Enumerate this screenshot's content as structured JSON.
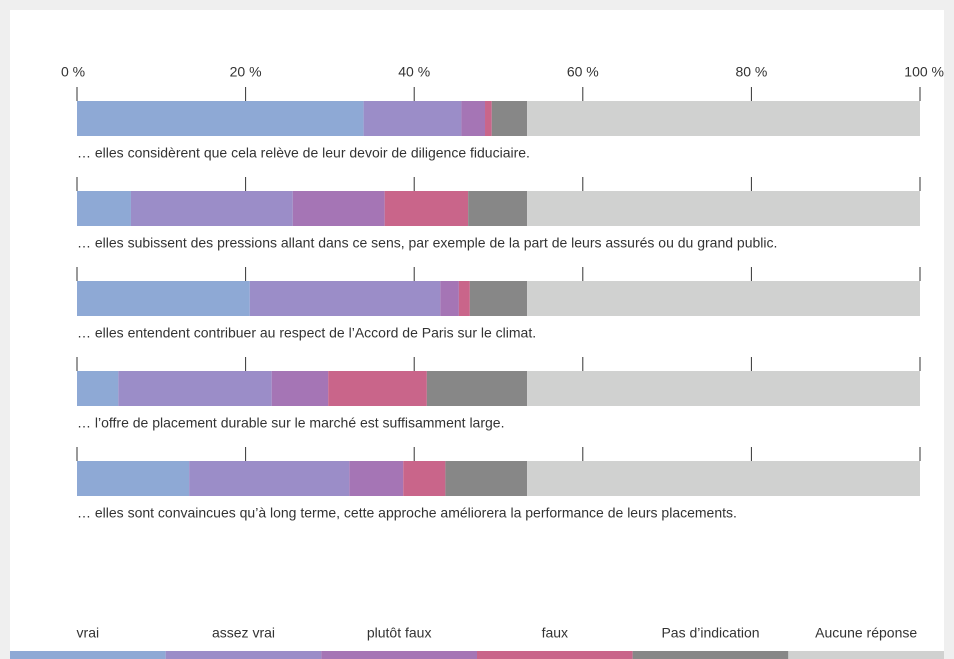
{
  "chart_data": {
    "type": "stacked-barh",
    "categories": [
      "… elles considèrent que cela relève de leur devoir de diligence fiduciaire.",
      "… elles subissent des pressions allant dans ce sens, par exemple de la part de leurs assurés ou du grand public.",
      "… elles entendent contribuer au respect de l’Accord de Paris sur le climat.",
      "… l’offre de placement durable sur le marché est suffisamment large.",
      "… elles sont convaincues qu’à long terme, cette approche améliorera la performance de leurs placements."
    ],
    "series": [
      {
        "name": "vrai",
        "color": "#8ea9d5",
        "values": [
          34.0,
          6.4,
          20.5,
          4.9,
          13.3
        ]
      },
      {
        "name": "assez vrai",
        "color": "#9b8dc8",
        "values": [
          11.6,
          19.2,
          22.6,
          18.2,
          19.0
        ]
      },
      {
        "name": "plutôt faux",
        "color": "#a575b5",
        "values": [
          2.8,
          10.9,
          2.2,
          6.7,
          6.4
        ]
      },
      {
        "name": "faux",
        "color": "#c9658a",
        "values": [
          0.8,
          9.9,
          1.3,
          11.7,
          5.0
        ]
      },
      {
        "name": "Pas d’indication",
        "color": "#878787",
        "values": [
          4.2,
          7.0,
          6.8,
          11.9,
          9.7
        ]
      },
      {
        "name": "Aucune réponse",
        "color": "#d0d1d0",
        "values": [
          46.6,
          46.6,
          46.6,
          46.6,
          46.6
        ]
      }
    ],
    "xlim": [
      0,
      100
    ],
    "xticks": [
      {
        "value": 0,
        "label": "0 %"
      },
      {
        "value": 20,
        "label": "20 %"
      },
      {
        "value": 40,
        "label": "40 %"
      },
      {
        "value": 60,
        "label": "60 %"
      },
      {
        "value": 80,
        "label": "80 %"
      },
      {
        "value": 100,
        "label": "100 %"
      }
    ],
    "legend": "bottom"
  }
}
